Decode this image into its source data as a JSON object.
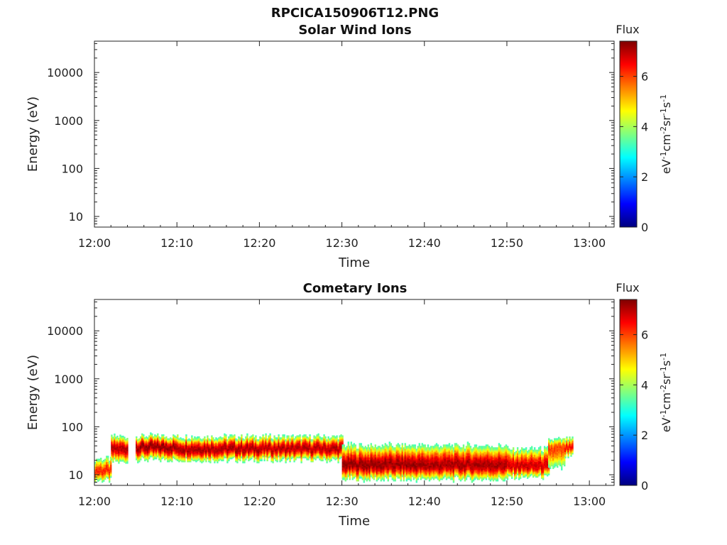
{
  "figure": {
    "title": "RPCICA150906T12.PNG"
  },
  "colorbar": {
    "title": "Flux",
    "ticks": [
      "0",
      "2",
      "4",
      "6"
    ],
    "range": [
      0,
      7.4
    ]
  },
  "chart_data": [
    {
      "type": "heatmap",
      "title": "Solar Wind Ions",
      "xlabel": "Time",
      "ylabel": "Energy (eV)",
      "xticks": [
        "12:00",
        "12:10",
        "12:20",
        "12:30",
        "12:40",
        "12:50",
        "13:00"
      ],
      "yticks": [
        "10",
        "100",
        "1000",
        "10000"
      ],
      "ylim": [
        6,
        45000
      ],
      "yscale": "log",
      "xlim": [
        "12:00",
        "13:03"
      ],
      "segments": []
    },
    {
      "type": "heatmap",
      "title": "Cometary Ions",
      "xlabel": "Time",
      "ylabel": "Energy (eV)",
      "xticks": [
        "12:00",
        "12:10",
        "12:20",
        "12:30",
        "12:40",
        "12:50",
        "13:00"
      ],
      "yticks": [
        "10",
        "100",
        "1000",
        "10000"
      ],
      "ylim": [
        6,
        45000
      ],
      "yscale": "log",
      "xlim": [
        "12:00",
        "13:03"
      ],
      "segments": [
        {
          "start": "12:00",
          "end": "12:02",
          "peak_energy": 12,
          "max_energy": 30,
          "min_energy": 6,
          "peak_flux": 6.2
        },
        {
          "start": "12:02",
          "end": "12:04",
          "peak_energy": 35,
          "max_energy": 80,
          "min_energy": 14,
          "peak_flux": 7.0
        },
        {
          "start": "12:05",
          "end": "12:10",
          "peak_energy": 38,
          "max_energy": 80,
          "min_energy": 16,
          "peak_flux": 7.2
        },
        {
          "start": "12:10",
          "end": "12:20",
          "peak_energy": 35,
          "max_energy": 80,
          "min_energy": 16,
          "peak_flux": 7.1
        },
        {
          "start": "12:20",
          "end": "12:30",
          "peak_energy": 35,
          "max_energy": 80,
          "min_energy": 16,
          "peak_flux": 7.0
        },
        {
          "start": "12:30",
          "end": "12:40",
          "peak_energy": 16,
          "max_energy": 60,
          "min_energy": 6,
          "peak_flux": 7.2
        },
        {
          "start": "12:40",
          "end": "12:50",
          "peak_energy": 16,
          "max_energy": 60,
          "min_energy": 6,
          "peak_flux": 7.1
        },
        {
          "start": "12:50",
          "end": "12:55",
          "peak_energy": 15,
          "max_energy": 50,
          "min_energy": 7,
          "peak_flux": 6.8
        },
        {
          "start": "12:55",
          "end": "12:57",
          "peak_energy": 35,
          "max_energy": 70,
          "min_energy": 8,
          "peak_flux": 6.0
        },
        {
          "start": "12:57",
          "end": "12:58",
          "peak_energy": 35,
          "max_energy": 70,
          "min_energy": 20,
          "peak_flux": 6.5
        }
      ]
    }
  ]
}
